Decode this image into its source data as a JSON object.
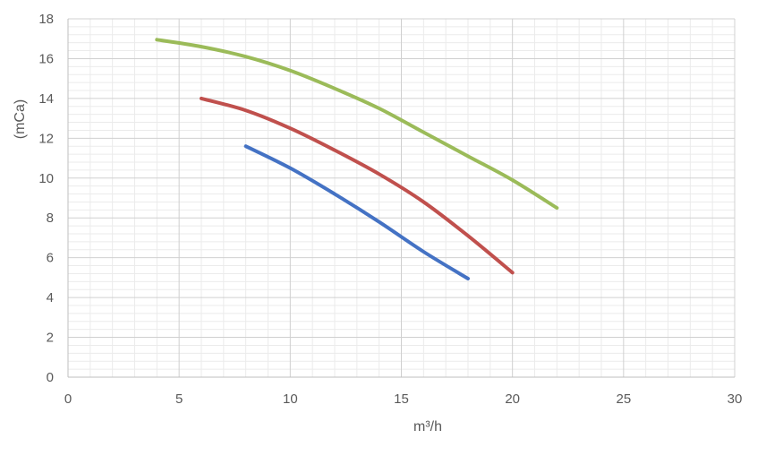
{
  "chart_data": {
    "type": "line",
    "title": "",
    "xlabel": "m³/h",
    "ylabel": "(mCa)",
    "xlim": [
      0,
      30
    ],
    "ylim": [
      0,
      18
    ],
    "xticks": [
      0,
      5,
      10,
      15,
      20,
      25,
      30
    ],
    "yticks": [
      0,
      2,
      4,
      6,
      8,
      10,
      12,
      14,
      16,
      18
    ],
    "grid": true,
    "legend": "none",
    "series": [
      {
        "color": "#4472c4",
        "x": [
          8,
          10,
          12,
          14,
          16,
          18
        ],
        "y": [
          11.6,
          10.5,
          9.2,
          7.8,
          6.3,
          4.95
        ]
      },
      {
        "color": "#c0504d",
        "x": [
          6,
          8,
          10,
          12,
          14,
          16,
          18,
          20
        ],
        "y": [
          14.0,
          13.4,
          12.5,
          11.4,
          10.2,
          8.8,
          7.1,
          5.25
        ]
      },
      {
        "color": "#9bbb59",
        "x": [
          4,
          6,
          8,
          10,
          12,
          14,
          16,
          18,
          20,
          22
        ],
        "y": [
          16.95,
          16.6,
          16.1,
          15.4,
          14.5,
          13.5,
          12.3,
          11.1,
          9.9,
          8.5
        ]
      }
    ]
  }
}
